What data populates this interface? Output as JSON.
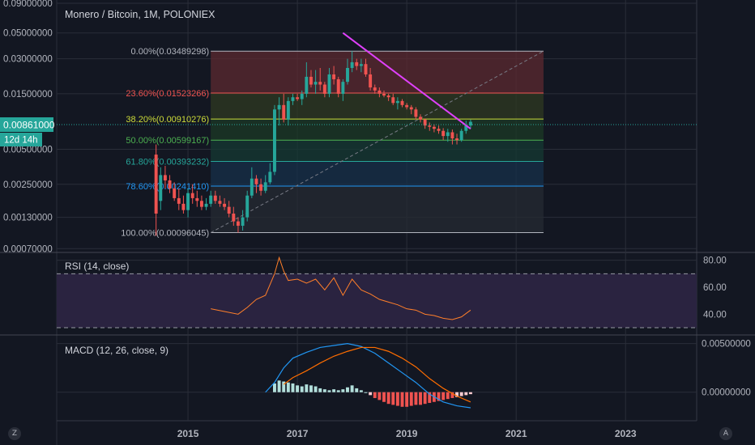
{
  "chart_data": {
    "type": "candlestick",
    "title": "Monero / Bitcoin, 1M, POLONIEX",
    "last_price": "0.00861000",
    "countdown": "12d 14h",
    "corner_badges": {
      "left": "Z",
      "right": "A"
    },
    "y_scale": "log",
    "price_ticks": [
      "0.09000000",
      "0.05000000",
      "0.03000000",
      "0.01500000",
      "0.00861000",
      "0.00500000",
      "0.00250000",
      "0.00130000",
      "0.00070000"
    ],
    "price_tick_values": [
      0.09,
      0.05,
      0.03,
      0.015,
      0.00861,
      0.005,
      0.0025,
      0.0013,
      0.0007
    ],
    "time_ticks": [
      "2015",
      "2017",
      "2019",
      "2021",
      "2023"
    ],
    "time_tick_values": [
      2015,
      2017,
      2019,
      2021,
      2023
    ],
    "x_range": [
      2012.6,
      2024.3
    ],
    "y_range": [
      0.00067,
      0.096
    ],
    "fibonacci": {
      "start": "2015-06",
      "end": "2021-07",
      "levels": [
        {
          "label": "0.00%(0.03489298)",
          "value": 0.03489298,
          "color": "#b2b5be",
          "fill": "#5c2a30"
        },
        {
          "label": "23.60%(0.01523266)",
          "value": 0.01523266,
          "color": "#ef5350",
          "fill": "#2f3a22"
        },
        {
          "label": "38.20%(0.00910276)",
          "value": 0.00910276,
          "color": "#cddc39",
          "fill": "#1c3a25"
        },
        {
          "label": "50.00%(0.00599167)",
          "value": 0.00599167,
          "color": "#4caf50",
          "fill": "#163a33"
        },
        {
          "label": "61.80%(0.00393232)",
          "value": 0.00393232,
          "color": "#26a69a",
          "fill": "#17304a"
        },
        {
          "label": "78.60%(0.00241410)",
          "value": 0.0024141,
          "color": "#2196f3",
          "fill": "#262b33"
        },
        {
          "label": "100.00%(0.00096045)",
          "value": 0.00096045,
          "color": "#b2b5be",
          "fill": null
        }
      ]
    },
    "trendline": {
      "from": [
        "2017-11",
        0.05
      ],
      "to": [
        "2020-03",
        0.0075
      ],
      "color": "#e040fb"
    },
    "candles": [
      [
        "2014-06",
        0.0045,
        0.0055,
        0.0009,
        0.0014
      ],
      [
        "2014-07",
        0.0018,
        0.0035,
        0.0015,
        0.003
      ],
      [
        "2014-08",
        0.003,
        0.0036,
        0.0023,
        0.0027
      ],
      [
        "2014-09",
        0.0027,
        0.003,
        0.0021,
        0.0023
      ],
      [
        "2014-10",
        0.0023,
        0.0026,
        0.0018,
        0.0019
      ],
      [
        "2014-11",
        0.0019,
        0.0023,
        0.0015,
        0.0017
      ],
      [
        "2014-12",
        0.0017,
        0.002,
        0.0014,
        0.0015
      ],
      [
        "2015-01",
        0.0015,
        0.0023,
        0.0013,
        0.0021
      ],
      [
        "2015-02",
        0.0021,
        0.0025,
        0.0017,
        0.0019
      ],
      [
        "2015-03",
        0.0019,
        0.0022,
        0.0016,
        0.0018
      ],
      [
        "2015-04",
        0.0018,
        0.002,
        0.0015,
        0.0016
      ],
      [
        "2015-05",
        0.0016,
        0.0019,
        0.0015,
        0.0017
      ],
      [
        "2015-06",
        0.0017,
        0.0022,
        0.0016,
        0.002
      ],
      [
        "2015-07",
        0.002,
        0.0022,
        0.0017,
        0.0018
      ],
      [
        "2015-08",
        0.0018,
        0.002,
        0.0016,
        0.0017
      ],
      [
        "2015-09",
        0.0017,
        0.0019,
        0.0015,
        0.0016
      ],
      [
        "2015-10",
        0.0016,
        0.0018,
        0.0013,
        0.0014
      ],
      [
        "2015-11",
        0.0014,
        0.0016,
        0.0011,
        0.0012
      ],
      [
        "2015-12",
        0.0012,
        0.0013,
        0.00096,
        0.0011
      ],
      [
        "2016-01",
        0.0011,
        0.0015,
        0.001,
        0.0013
      ],
      [
        "2016-02",
        0.0013,
        0.0022,
        0.0012,
        0.002
      ],
      [
        "2016-03",
        0.002,
        0.0035,
        0.0019,
        0.0028
      ],
      [
        "2016-04",
        0.0028,
        0.003,
        0.0021,
        0.0025
      ],
      [
        "2016-05",
        0.0025,
        0.0028,
        0.002,
        0.0022
      ],
      [
        "2016-06",
        0.0022,
        0.003,
        0.0021,
        0.0026
      ],
      [
        "2016-07",
        0.0026,
        0.0038,
        0.0025,
        0.0032
      ],
      [
        "2016-08",
        0.0032,
        0.012,
        0.003,
        0.011
      ],
      [
        "2016-09",
        0.011,
        0.014,
        0.008,
        0.012
      ],
      [
        "2016-10",
        0.012,
        0.015,
        0.0085,
        0.009
      ],
      [
        "2016-11",
        0.009,
        0.014,
        0.008,
        0.013
      ],
      [
        "2016-12",
        0.013,
        0.015,
        0.012,
        0.014
      ],
      [
        "2017-01",
        0.014,
        0.015,
        0.013,
        0.0135
      ],
      [
        "2017-02",
        0.0135,
        0.016,
        0.012,
        0.015
      ],
      [
        "2017-03",
        0.015,
        0.028,
        0.014,
        0.021
      ],
      [
        "2017-04",
        0.021,
        0.024,
        0.017,
        0.018
      ],
      [
        "2017-05",
        0.018,
        0.024,
        0.015,
        0.019
      ],
      [
        "2017-06",
        0.019,
        0.025,
        0.016,
        0.018
      ],
      [
        "2017-07",
        0.018,
        0.019,
        0.014,
        0.015
      ],
      [
        "2017-08",
        0.015,
        0.025,
        0.014,
        0.022
      ],
      [
        "2017-09",
        0.022,
        0.026,
        0.018,
        0.02
      ],
      [
        "2017-10",
        0.02,
        0.021,
        0.014,
        0.015
      ],
      [
        "2017-11",
        0.015,
        0.02,
        0.013,
        0.019
      ],
      [
        "2017-12",
        0.019,
        0.03,
        0.018,
        0.025
      ],
      [
        "2018-01",
        0.025,
        0.0349,
        0.023,
        0.028
      ],
      [
        "2018-02",
        0.028,
        0.03,
        0.024,
        0.026
      ],
      [
        "2018-03",
        0.026,
        0.03,
        0.023,
        0.027
      ],
      [
        "2018-04",
        0.027,
        0.03,
        0.021,
        0.022
      ],
      [
        "2018-05",
        0.022,
        0.025,
        0.016,
        0.017
      ],
      [
        "2018-06",
        0.017,
        0.018,
        0.015,
        0.016
      ],
      [
        "2018-07",
        0.016,
        0.017,
        0.014,
        0.015
      ],
      [
        "2018-08",
        0.015,
        0.016,
        0.014,
        0.0145
      ],
      [
        "2018-09",
        0.0145,
        0.015,
        0.013,
        0.014
      ],
      [
        "2018-10",
        0.014,
        0.015,
        0.012,
        0.0125
      ],
      [
        "2018-11",
        0.0125,
        0.014,
        0.011,
        0.013
      ],
      [
        "2018-12",
        0.013,
        0.0135,
        0.0115,
        0.012
      ],
      [
        "2019-01",
        0.012,
        0.0125,
        0.011,
        0.0115
      ],
      [
        "2019-02",
        0.0115,
        0.012,
        0.01,
        0.011
      ],
      [
        "2019-03",
        0.011,
        0.0115,
        0.009,
        0.0095
      ],
      [
        "2019-04",
        0.0095,
        0.01,
        0.0085,
        0.009
      ],
      [
        "2019-05",
        0.009,
        0.0092,
        0.0075,
        0.008
      ],
      [
        "2019-06",
        0.008,
        0.0085,
        0.0072,
        0.0078
      ],
      [
        "2019-07",
        0.0078,
        0.0082,
        0.007,
        0.0075
      ],
      [
        "2019-08",
        0.0075,
        0.008,
        0.0068,
        0.0072
      ],
      [
        "2019-09",
        0.0072,
        0.0076,
        0.006,
        0.0065
      ],
      [
        "2019-10",
        0.0065,
        0.0075,
        0.0058,
        0.007
      ],
      [
        "2019-11",
        0.007,
        0.0074,
        0.0055,
        0.0062
      ],
      [
        "2019-12",
        0.0062,
        0.0068,
        0.0055,
        0.006
      ],
      [
        "2020-01",
        0.006,
        0.0075,
        0.0058,
        0.0072
      ],
      [
        "2020-02",
        0.0072,
        0.0088,
        0.0068,
        0.008
      ],
      [
        "2020-03",
        0.008,
        0.009,
        0.0075,
        0.00861
      ]
    ],
    "rsi": {
      "label": "RSI (14, close)",
      "ticks": [
        "80.00",
        "60.00",
        "40.00"
      ],
      "tick_values": [
        80,
        60,
        40
      ],
      "y_range": [
        27,
        84
      ],
      "band": [
        30,
        70
      ],
      "band_fill": "#2a2340",
      "color": "#ff7f2a",
      "x": [
        "2015-06",
        "2015-09",
        "2015-12",
        "2016-02",
        "2016-04",
        "2016-06",
        "2016-08",
        "2016-09",
        "2016-10",
        "2016-11",
        "2017-01",
        "2017-03",
        "2017-05",
        "2017-07",
        "2017-09",
        "2017-11",
        "2018-01",
        "2018-03",
        "2018-05",
        "2018-07",
        "2018-09",
        "2018-11",
        "2019-01",
        "2019-03",
        "2019-05",
        "2019-07",
        "2019-09",
        "2019-11",
        "2020-01",
        "2020-03"
      ],
      "values": [
        44,
        42,
        40,
        45,
        51,
        54,
        70,
        82,
        72,
        65,
        66,
        63,
        66,
        58,
        67,
        54,
        66,
        58,
        55,
        51,
        49,
        47,
        44,
        43,
        40,
        39,
        37,
        36,
        38,
        43
      ]
    },
    "macd": {
      "label": "MACD (12, 26, close, 9)",
      "ticks": [
        "0.00500000",
        "0.00000000"
      ],
      "tick_values": [
        0.005,
        0.0
      ],
      "y_range": [
        -0.0021,
        0.0058
      ],
      "macd_color": "#2196f3",
      "signal_color": "#ff6d00",
      "x": [
        "2016-06",
        "2016-08",
        "2016-10",
        "2016-12",
        "2017-03",
        "2017-06",
        "2017-09",
        "2017-12",
        "2018-03",
        "2018-06",
        "2018-09",
        "2018-12",
        "2019-03",
        "2019-06",
        "2019-09",
        "2019-12",
        "2020-03"
      ],
      "macd": [
        0.0,
        0.001,
        0.0025,
        0.0035,
        0.0041,
        0.0046,
        0.0048,
        0.005,
        0.0047,
        0.004,
        0.003,
        0.002,
        0.001,
        -0.0002,
        -0.001,
        -0.0014,
        -0.0016
      ],
      "signal": [
        null,
        null,
        0.0008,
        0.0015,
        0.0022,
        0.003,
        0.0037,
        0.0042,
        0.0046,
        0.0046,
        0.0042,
        0.0035,
        0.0026,
        0.0014,
        0.0004,
        -0.0004,
        -0.001
      ],
      "histogram_x": [
        "2016-08",
        "2016-09",
        "2016-10",
        "2016-11",
        "2016-12",
        "2017-01",
        "2017-02",
        "2017-03",
        "2017-04",
        "2017-05",
        "2017-06",
        "2017-07",
        "2017-08",
        "2017-09",
        "2017-10",
        "2017-11",
        "2017-12",
        "2018-01",
        "2018-02",
        "2018-03",
        "2018-04",
        "2018-05",
        "2018-06",
        "2018-07",
        "2018-08",
        "2018-09",
        "2018-10",
        "2018-11",
        "2018-12",
        "2019-01",
        "2019-02",
        "2019-03",
        "2019-04",
        "2019-05",
        "2019-06",
        "2019-07",
        "2019-08",
        "2019-09",
        "2019-10",
        "2019-11",
        "2019-12",
        "2020-01",
        "2020-02",
        "2020-03"
      ],
      "histogram": [
        0.0009,
        0.0012,
        0.0011,
        0.001,
        0.0009,
        0.0007,
        0.0006,
        0.0008,
        0.0007,
        0.0006,
        0.0004,
        0.0003,
        0.0002,
        0.0003,
        0.0002,
        0.0003,
        0.0005,
        0.0007,
        0.0004,
        0.0002,
        0.0,
        -0.0003,
        -0.0006,
        -0.0008,
        -0.001,
        -0.0012,
        -0.0013,
        -0.0014,
        -0.0015,
        -0.0015,
        -0.0014,
        -0.0013,
        -0.0013,
        -0.0012,
        -0.0011,
        -0.001,
        -0.0009,
        -0.0008,
        -0.0007,
        -0.0006,
        -0.0005,
        -0.0004,
        -0.0003,
        -0.0002
      ]
    }
  }
}
